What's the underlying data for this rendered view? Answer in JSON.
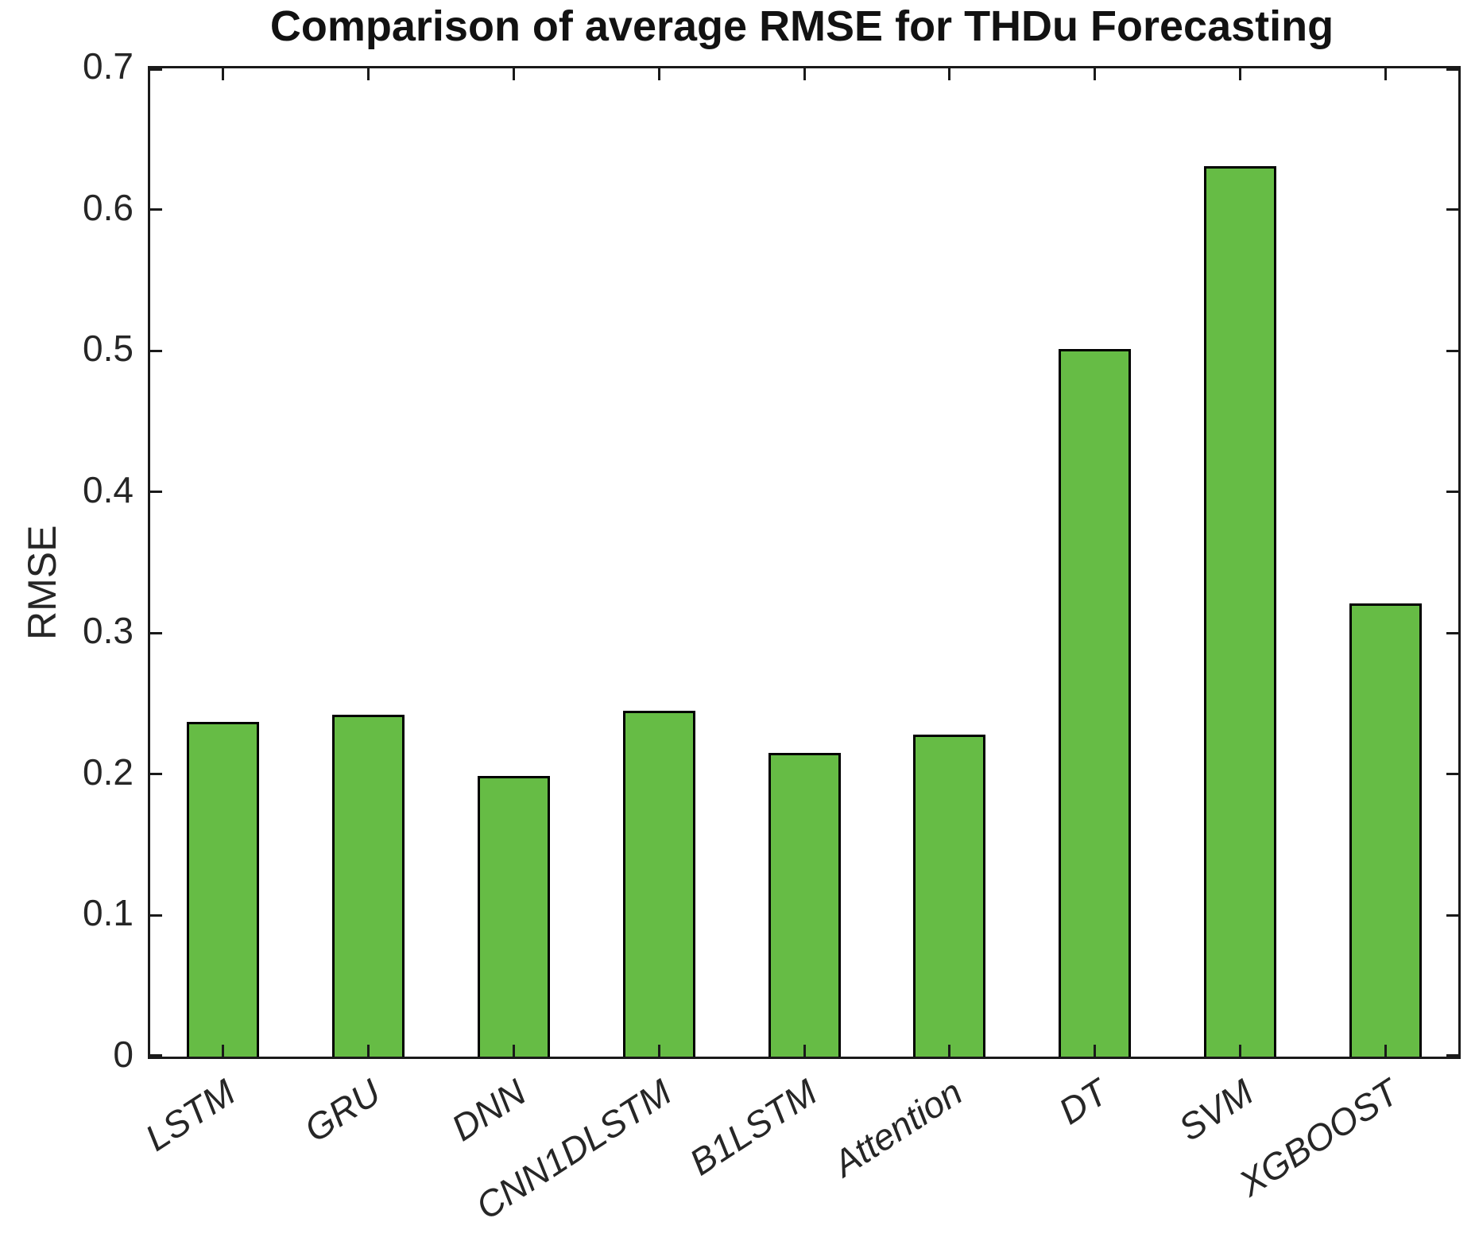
{
  "chart_data": {
    "type": "bar",
    "title": "Comparison of average RMSE for THDu Forecasting",
    "xlabel": "",
    "ylabel": "RMSE",
    "categories": [
      "LSTM",
      "GRU",
      "DNN",
      "CNN1DLSTM",
      "B1LSTM",
      "Attention",
      "DT",
      "SVM",
      "XGBOOST"
    ],
    "values": [
      0.237,
      0.242,
      0.199,
      0.245,
      0.215,
      0.228,
      0.501,
      0.631,
      0.321
    ],
    "ylim": [
      0,
      0.7
    ],
    "ytick_labels": [
      "0",
      "0.1",
      "0.2",
      "0.3",
      "0.4",
      "0.5",
      "0.6",
      "0.7"
    ],
    "ytick_values": [
      0,
      0.1,
      0.2,
      0.3,
      0.4,
      0.5,
      0.6,
      0.7
    ],
    "grid": false,
    "legend": null,
    "bar_color": "#66bc45",
    "bar_edge_color": "#000000",
    "axis_color": "#1a1a1a",
    "text_color": "#262626",
    "xtick_angle_deg": -33
  }
}
